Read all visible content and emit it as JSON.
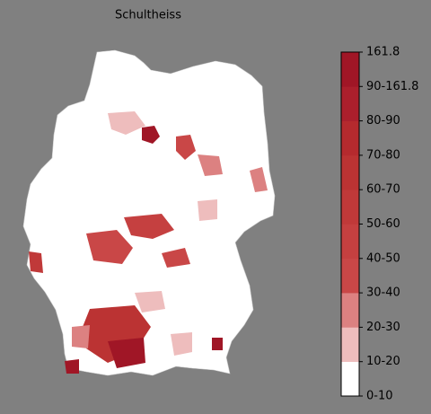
{
  "title": "Schultheiss",
  "colorbar": {
    "labels": [
      "0-10",
      "10-20",
      "20-30",
      "30-40",
      "40-50",
      "50-60",
      "60-70",
      "70-80",
      "80-90",
      "90-161.8",
      "161.8"
    ],
    "colors": [
      "#ffffff",
      "#eebdbd",
      "#dc8181",
      "#c94747",
      "#c54040",
      "#c03939",
      "#bb3333",
      "#b52a2e",
      "#ab1f2c",
      "#a01626"
    ]
  }
}
